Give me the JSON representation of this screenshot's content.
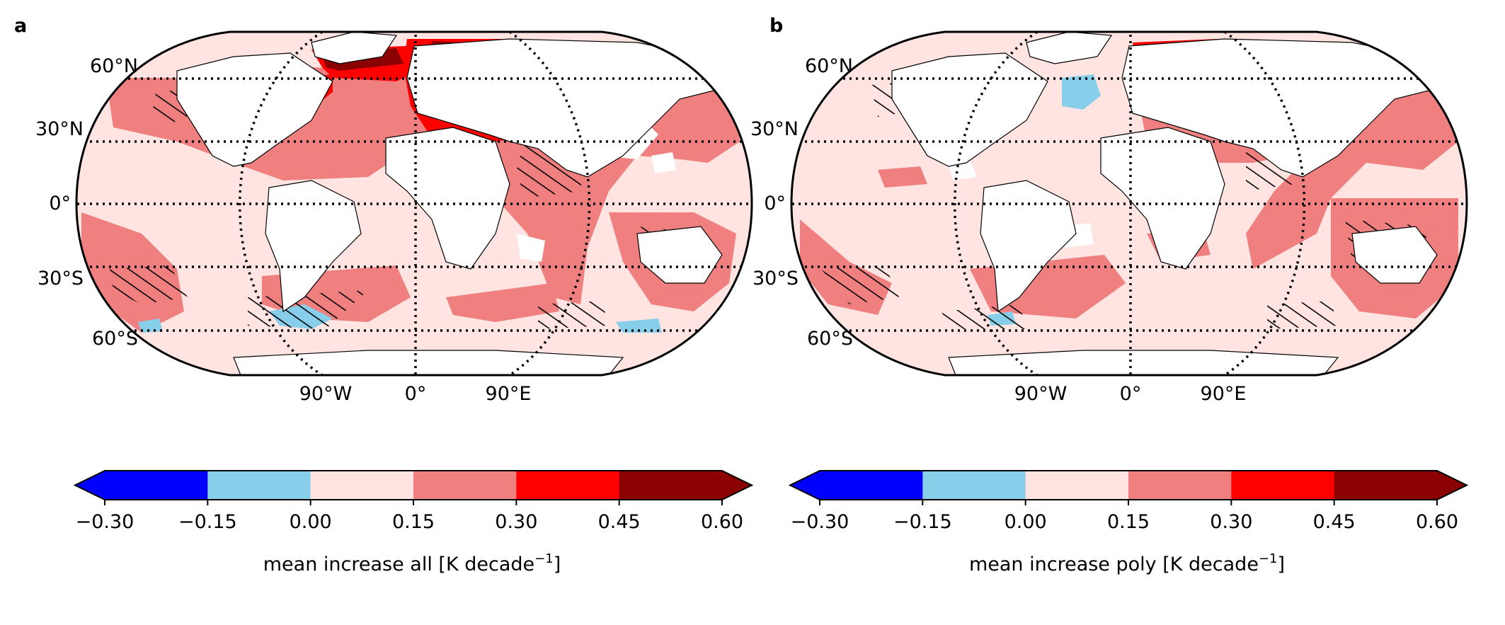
{
  "colors": {
    "bins": [
      "#0000ff",
      "#87ceeb",
      "#ffe4e1",
      "#f08080",
      "#ff0000",
      "#8b0000"
    ],
    "ocean_background": "#ffffff",
    "land": "#ffffff",
    "hatch": "#000000"
  },
  "lat_labels": [
    "60°N",
    "30°N",
    "0°",
    "30°S",
    "60°S"
  ],
  "lon_labels": [
    "90°W",
    "0°",
    "90°E"
  ],
  "colorbar": {
    "ticks": [
      "−0.30",
      "−0.15",
      "0.00",
      "0.15",
      "0.30",
      "0.45",
      "0.60"
    ],
    "extend": "both"
  },
  "panels": [
    {
      "letter": "a",
      "label_main": "mean increase all [K decade",
      "label_sup": "−1",
      "label_end": "]"
    },
    {
      "letter": "b",
      "label_main": "mean increase poly [K decade",
      "label_sup": "−1",
      "label_end": "]"
    }
  ]
}
